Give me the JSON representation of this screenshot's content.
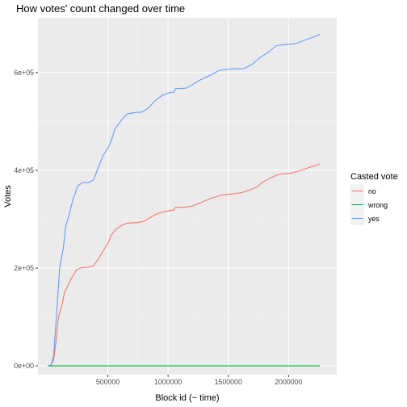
{
  "chart_data": {
    "type": "line",
    "title": "How votes' count changed over time",
    "xlabel": "Block id (~ time)",
    "ylabel": "Votes",
    "xlim": [
      -80000,
      2400000
    ],
    "ylim": [
      -18000,
      712000
    ],
    "x_ticks": [
      {
        "value": 500000,
        "label": "500000"
      },
      {
        "value": 1000000,
        "label": "1000000"
      },
      {
        "value": 1500000,
        "label": "1500000"
      },
      {
        "value": 2000000,
        "label": "2000000"
      }
    ],
    "y_ticks": [
      {
        "value": 0,
        "label": "0e+00"
      },
      {
        "value": 200000,
        "label": "2e+05"
      },
      {
        "value": 400000,
        "label": "4e+05"
      },
      {
        "value": 600000,
        "label": "6e+05"
      }
    ],
    "grid": true,
    "legend": {
      "title": "Casted vote",
      "position": "right",
      "entries": [
        "no",
        "wrong",
        "yes"
      ]
    },
    "series": [
      {
        "name": "no",
        "color": "#F8766D",
        "points": [
          [
            0,
            0
          ],
          [
            30000,
            2000
          ],
          [
            50000,
            12000
          ],
          [
            70000,
            50000
          ],
          [
            90000,
            100000
          ],
          [
            120000,
            125000
          ],
          [
            140000,
            150000
          ],
          [
            170000,
            165000
          ],
          [
            200000,
            180000
          ],
          [
            240000,
            196000
          ],
          [
            280000,
            201000
          ],
          [
            340000,
            202000
          ],
          [
            380000,
            205000
          ],
          [
            420000,
            218000
          ],
          [
            460000,
            235000
          ],
          [
            500000,
            250000
          ],
          [
            530000,
            268000
          ],
          [
            570000,
            280000
          ],
          [
            620000,
            288000
          ],
          [
            660000,
            292000
          ],
          [
            750000,
            293000
          ],
          [
            800000,
            296000
          ],
          [
            850000,
            303000
          ],
          [
            900000,
            310000
          ],
          [
            960000,
            315000
          ],
          [
            1000000,
            317000
          ],
          [
            1050000,
            319000
          ],
          [
            1060000,
            324000
          ],
          [
            1150000,
            325000
          ],
          [
            1200000,
            327000
          ],
          [
            1250000,
            332000
          ],
          [
            1300000,
            337000
          ],
          [
            1350000,
            342000
          ],
          [
            1400000,
            346000
          ],
          [
            1450000,
            350000
          ],
          [
            1550000,
            352000
          ],
          [
            1620000,
            355000
          ],
          [
            1680000,
            360000
          ],
          [
            1740000,
            366000
          ],
          [
            1780000,
            375000
          ],
          [
            1840000,
            383000
          ],
          [
            1900000,
            390000
          ],
          [
            1950000,
            393000
          ],
          [
            2020000,
            394000
          ],
          [
            2080000,
            398000
          ],
          [
            2150000,
            404000
          ],
          [
            2200000,
            408000
          ],
          [
            2260000,
            413000
          ]
        ]
      },
      {
        "name": "wrong",
        "color": "#00BA38",
        "points": [
          [
            0,
            0
          ],
          [
            2260000,
            0
          ]
        ]
      },
      {
        "name": "yes",
        "color": "#619CFF",
        "points": [
          [
            0,
            0
          ],
          [
            30000,
            2000
          ],
          [
            50000,
            20000
          ],
          [
            70000,
            90000
          ],
          [
            100000,
            200000
          ],
          [
            130000,
            240000
          ],
          [
            150000,
            285000
          ],
          [
            180000,
            310000
          ],
          [
            210000,
            340000
          ],
          [
            250000,
            368000
          ],
          [
            290000,
            375000
          ],
          [
            340000,
            375000
          ],
          [
            380000,
            380000
          ],
          [
            420000,
            405000
          ],
          [
            460000,
            430000
          ],
          [
            500000,
            445000
          ],
          [
            530000,
            462000
          ],
          [
            560000,
            485000
          ],
          [
            620000,
            505000
          ],
          [
            660000,
            515000
          ],
          [
            720000,
            518000
          ],
          [
            780000,
            519000
          ],
          [
            840000,
            528000
          ],
          [
            890000,
            542000
          ],
          [
            950000,
            553000
          ],
          [
            1000000,
            558000
          ],
          [
            1050000,
            560000
          ],
          [
            1060000,
            567000
          ],
          [
            1150000,
            568000
          ],
          [
            1200000,
            575000
          ],
          [
            1260000,
            584000
          ],
          [
            1320000,
            591000
          ],
          [
            1380000,
            598000
          ],
          [
            1420000,
            604000
          ],
          [
            1500000,
            607000
          ],
          [
            1630000,
            608000
          ],
          [
            1700000,
            617000
          ],
          [
            1770000,
            632000
          ],
          [
            1830000,
            641000
          ],
          [
            1900000,
            655000
          ],
          [
            1960000,
            657000
          ],
          [
            2060000,
            659000
          ],
          [
            2120000,
            665000
          ],
          [
            2200000,
            672000
          ],
          [
            2260000,
            678000
          ]
        ]
      }
    ]
  }
}
